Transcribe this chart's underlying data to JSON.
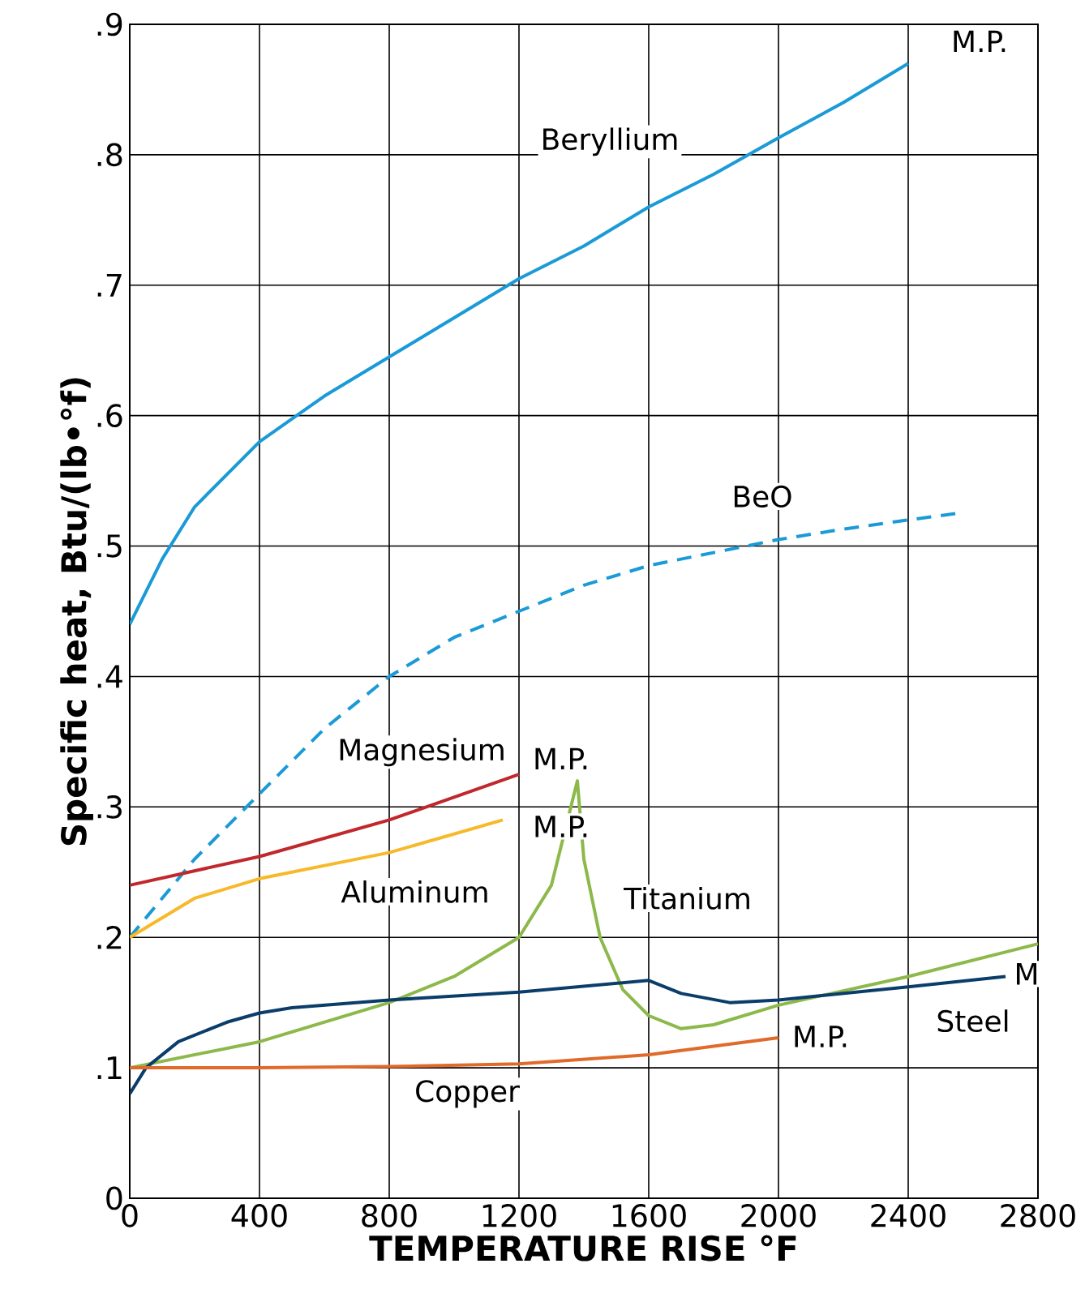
{
  "chart_data": {
    "type": "line",
    "xlabel": "TEMPERATURE RISE °F",
    "ylabel": "Specific heat, Btu/(lb•°f)",
    "xlim": [
      0,
      2800
    ],
    "xticks": [
      0,
      400,
      800,
      1200,
      1600,
      2000,
      2400,
      2800
    ],
    "ylim": [
      0,
      0.9
    ],
    "yticks": [
      0,
      {
        "value": 0.1,
        "label": ".1"
      },
      {
        "value": 0.2,
        "label": ".2"
      },
      {
        "value": 0.3,
        "label": ".3"
      },
      {
        "value": 0.4,
        "label": ".4"
      },
      {
        "value": 0.5,
        "label": ".5"
      },
      {
        "value": 0.6,
        "label": ".6"
      },
      {
        "value": 0.7,
        "label": ".7"
      },
      {
        "value": 0.8,
        "label": ".8"
      },
      {
        "value": 0.9,
        "label": ".9"
      }
    ],
    "grid": true,
    "series": [
      {
        "name": "Beryllium",
        "color": "#1a9ad6",
        "x": [
          0,
          100,
          200,
          400,
          600,
          800,
          1000,
          1200,
          1400,
          1600,
          1800,
          2000,
          2200,
          2400
        ],
        "values": [
          0.44,
          0.49,
          0.53,
          0.58,
          0.615,
          0.645,
          0.675,
          0.705,
          0.73,
          0.76,
          0.785,
          0.813,
          0.84,
          0.87
        ]
      },
      {
        "name": "BeO",
        "color": "#1a9ad6",
        "line_style": "dashed",
        "x": [
          0,
          200,
          400,
          600,
          800,
          1000,
          1200,
          1400,
          1600,
          1800,
          2000,
          2200,
          2400,
          2550
        ],
        "values": [
          0.2,
          0.26,
          0.31,
          0.36,
          0.4,
          0.43,
          0.45,
          0.47,
          0.485,
          0.495,
          0.505,
          0.513,
          0.52,
          0.525
        ]
      },
      {
        "name": "Magnesium",
        "color": "#c0282d",
        "x": [
          0,
          400,
          800,
          1200
        ],
        "values": [
          0.24,
          0.262,
          0.29,
          0.325
        ]
      },
      {
        "name": "Aluminum",
        "color": "#f7b92a",
        "x": [
          0,
          200,
          400,
          800,
          1150
        ],
        "values": [
          0.2,
          0.23,
          0.245,
          0.265,
          0.29
        ]
      },
      {
        "name": "Titanium",
        "color": "#8db84a",
        "x": [
          0,
          400,
          800,
          1000,
          1200,
          1300,
          1360,
          1380,
          1400,
          1450,
          1520,
          1600,
          1700,
          1800,
          2000,
          2400,
          2800
        ],
        "values": [
          0.1,
          0.12,
          0.15,
          0.17,
          0.2,
          0.24,
          0.3,
          0.32,
          0.26,
          0.2,
          0.16,
          0.14,
          0.13,
          0.133,
          0.148,
          0.17,
          0.195
        ]
      },
      {
        "name": "Steel",
        "color": "#0b3d6b",
        "x": [
          0,
          50,
          150,
          300,
          400,
          500,
          800,
          1200,
          1600,
          1700,
          1850,
          2000,
          2400,
          2700
        ],
        "values": [
          0.08,
          0.1,
          0.12,
          0.135,
          0.142,
          0.146,
          0.152,
          0.158,
          0.167,
          0.157,
          0.15,
          0.152,
          0.162,
          0.17
        ]
      },
      {
        "name": "Copper",
        "color": "#e06a2a",
        "x": [
          0,
          400,
          800,
          1200,
          1600,
          2000
        ],
        "values": [
          0.1,
          0.1,
          0.101,
          0.103,
          0.11,
          0.123
        ]
      }
    ],
    "annotations": [
      "M.P.",
      "M.P.",
      "M.P.",
      "M",
      "M.P."
    ]
  }
}
